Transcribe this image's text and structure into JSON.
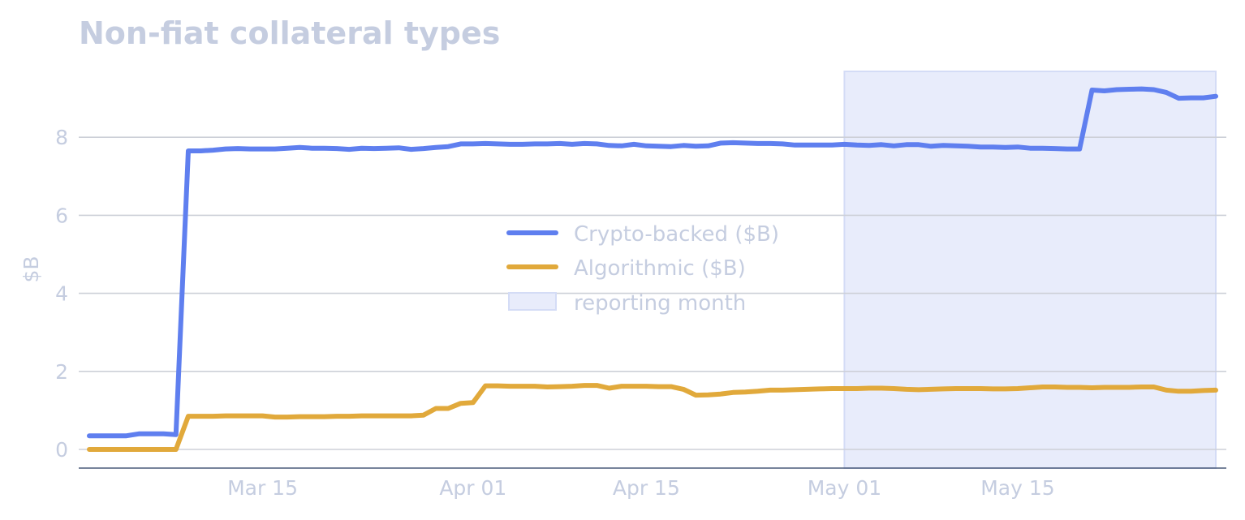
{
  "chart_data": {
    "type": "line",
    "title": "Non-fiat collateral types",
    "xlabel": "",
    "ylabel": "$B",
    "x_ticks": [
      "Mar 15",
      "Apr 01",
      "Apr 15",
      "May 01",
      "May 15"
    ],
    "y_ticks": [
      "0",
      "2",
      "4",
      "6",
      "8"
    ],
    "ylim": [
      -0.45,
      9.7
    ],
    "x_start": "2024-03-01",
    "x_end": "2024-05-31",
    "grid": "horizontal",
    "legend_placement": "center",
    "highlight": {
      "label": "reporting month",
      "start": "2024-05-01",
      "end": "2024-05-31",
      "color": "#e8ecfb"
    },
    "series": [
      {
        "name": "Crypto-backed ($B)",
        "color": "#5f7fef",
        "points": [
          [
            "2024-03-01",
            0.35
          ],
          [
            "2024-03-02",
            0.35
          ],
          [
            "2024-03-03",
            0.35
          ],
          [
            "2024-03-04",
            0.35
          ],
          [
            "2024-03-05",
            0.4
          ],
          [
            "2024-03-06",
            0.4
          ],
          [
            "2024-03-07",
            0.4
          ],
          [
            "2024-03-08",
            0.38
          ],
          [
            "2024-03-09",
            7.65
          ],
          [
            "2024-03-10",
            7.65
          ],
          [
            "2024-03-11",
            7.67
          ],
          [
            "2024-03-12",
            7.7
          ],
          [
            "2024-03-13",
            7.71
          ],
          [
            "2024-03-14",
            7.7
          ],
          [
            "2024-03-15",
            7.7
          ],
          [
            "2024-03-16",
            7.7
          ],
          [
            "2024-03-17",
            7.72
          ],
          [
            "2024-03-18",
            7.74
          ],
          [
            "2024-03-19",
            7.72
          ],
          [
            "2024-03-20",
            7.72
          ],
          [
            "2024-03-21",
            7.71
          ],
          [
            "2024-03-22",
            7.69
          ],
          [
            "2024-03-23",
            7.72
          ],
          [
            "2024-03-24",
            7.71
          ],
          [
            "2024-03-25",
            7.72
          ],
          [
            "2024-03-26",
            7.73
          ],
          [
            "2024-03-27",
            7.69
          ],
          [
            "2024-03-28",
            7.71
          ],
          [
            "2024-03-29",
            7.74
          ],
          [
            "2024-03-30",
            7.76
          ],
          [
            "2024-03-31",
            7.83
          ],
          [
            "2024-04-01",
            7.83
          ],
          [
            "2024-04-02",
            7.84
          ],
          [
            "2024-04-03",
            7.83
          ],
          [
            "2024-04-04",
            7.82
          ],
          [
            "2024-04-05",
            7.82
          ],
          [
            "2024-04-06",
            7.83
          ],
          [
            "2024-04-07",
            7.83
          ],
          [
            "2024-04-08",
            7.84
          ],
          [
            "2024-04-09",
            7.82
          ],
          [
            "2024-04-10",
            7.84
          ],
          [
            "2024-04-11",
            7.83
          ],
          [
            "2024-04-12",
            7.79
          ],
          [
            "2024-04-13",
            7.78
          ],
          [
            "2024-04-14",
            7.82
          ],
          [
            "2024-04-15",
            7.78
          ],
          [
            "2024-04-16",
            7.77
          ],
          [
            "2024-04-17",
            7.76
          ],
          [
            "2024-04-18",
            7.79
          ],
          [
            "2024-04-19",
            7.77
          ],
          [
            "2024-04-20",
            7.78
          ],
          [
            "2024-04-21",
            7.85
          ],
          [
            "2024-04-22",
            7.86
          ],
          [
            "2024-04-23",
            7.85
          ],
          [
            "2024-04-24",
            7.84
          ],
          [
            "2024-04-25",
            7.84
          ],
          [
            "2024-04-26",
            7.83
          ],
          [
            "2024-04-27",
            7.8
          ],
          [
            "2024-04-28",
            7.8
          ],
          [
            "2024-04-29",
            7.8
          ],
          [
            "2024-04-30",
            7.8
          ],
          [
            "2024-05-01",
            7.82
          ],
          [
            "2024-05-02",
            7.8
          ],
          [
            "2024-05-03",
            7.79
          ],
          [
            "2024-05-04",
            7.81
          ],
          [
            "2024-05-05",
            7.78
          ],
          [
            "2024-05-06",
            7.81
          ],
          [
            "2024-05-07",
            7.81
          ],
          [
            "2024-05-08",
            7.77
          ],
          [
            "2024-05-09",
            7.79
          ],
          [
            "2024-05-10",
            7.78
          ],
          [
            "2024-05-11",
            7.77
          ],
          [
            "2024-05-12",
            7.75
          ],
          [
            "2024-05-13",
            7.75
          ],
          [
            "2024-05-14",
            7.74
          ],
          [
            "2024-05-15",
            7.75
          ],
          [
            "2024-05-16",
            7.72
          ],
          [
            "2024-05-17",
            7.72
          ],
          [
            "2024-05-18",
            7.71
          ],
          [
            "2024-05-19",
            7.7
          ],
          [
            "2024-05-20",
            7.7
          ],
          [
            "2024-05-21",
            9.21
          ],
          [
            "2024-05-22",
            9.19
          ],
          [
            "2024-05-23",
            9.22
          ],
          [
            "2024-05-24",
            9.23
          ],
          [
            "2024-05-25",
            9.24
          ],
          [
            "2024-05-26",
            9.22
          ],
          [
            "2024-05-27",
            9.15
          ],
          [
            "2024-05-28",
            9.0
          ],
          [
            "2024-05-29",
            9.01
          ],
          [
            "2024-05-30",
            9.01
          ],
          [
            "2024-05-31",
            9.05
          ]
        ]
      },
      {
        "name": "Algorithmic ($B)",
        "color": "#e1a93b",
        "points": [
          [
            "2024-03-01",
            0.0
          ],
          [
            "2024-03-02",
            0.0
          ],
          [
            "2024-03-03",
            0.0
          ],
          [
            "2024-03-04",
            0.0
          ],
          [
            "2024-03-05",
            0.0
          ],
          [
            "2024-03-06",
            0.0
          ],
          [
            "2024-03-07",
            0.0
          ],
          [
            "2024-03-08",
            0.0
          ],
          [
            "2024-03-09",
            0.85
          ],
          [
            "2024-03-10",
            0.85
          ],
          [
            "2024-03-11",
            0.85
          ],
          [
            "2024-03-12",
            0.86
          ],
          [
            "2024-03-13",
            0.86
          ],
          [
            "2024-03-14",
            0.86
          ],
          [
            "2024-03-15",
            0.86
          ],
          [
            "2024-03-16",
            0.83
          ],
          [
            "2024-03-17",
            0.83
          ],
          [
            "2024-03-18",
            0.84
          ],
          [
            "2024-03-19",
            0.84
          ],
          [
            "2024-03-20",
            0.84
          ],
          [
            "2024-03-21",
            0.85
          ],
          [
            "2024-03-22",
            0.85
          ],
          [
            "2024-03-23",
            0.86
          ],
          [
            "2024-03-24",
            0.86
          ],
          [
            "2024-03-25",
            0.86
          ],
          [
            "2024-03-26",
            0.86
          ],
          [
            "2024-03-27",
            0.86
          ],
          [
            "2024-03-28",
            0.88
          ],
          [
            "2024-03-29",
            1.05
          ],
          [
            "2024-03-30",
            1.05
          ],
          [
            "2024-03-31",
            1.18
          ],
          [
            "2024-04-01",
            1.2
          ],
          [
            "2024-04-02",
            1.63
          ],
          [
            "2024-04-03",
            1.63
          ],
          [
            "2024-04-04",
            1.62
          ],
          [
            "2024-04-05",
            1.62
          ],
          [
            "2024-04-06",
            1.62
          ],
          [
            "2024-04-07",
            1.6
          ],
          [
            "2024-04-08",
            1.61
          ],
          [
            "2024-04-09",
            1.62
          ],
          [
            "2024-04-10",
            1.64
          ],
          [
            "2024-04-11",
            1.64
          ],
          [
            "2024-04-12",
            1.57
          ],
          [
            "2024-04-13",
            1.62
          ],
          [
            "2024-04-14",
            1.62
          ],
          [
            "2024-04-15",
            1.62
          ],
          [
            "2024-04-16",
            1.61
          ],
          [
            "2024-04-17",
            1.61
          ],
          [
            "2024-04-18",
            1.54
          ],
          [
            "2024-04-19",
            1.39
          ],
          [
            "2024-04-20",
            1.4
          ],
          [
            "2024-04-21",
            1.42
          ],
          [
            "2024-04-22",
            1.46
          ],
          [
            "2024-04-23",
            1.47
          ],
          [
            "2024-04-24",
            1.49
          ],
          [
            "2024-04-25",
            1.52
          ],
          [
            "2024-04-26",
            1.52
          ],
          [
            "2024-04-27",
            1.53
          ],
          [
            "2024-04-28",
            1.54
          ],
          [
            "2024-04-29",
            1.55
          ],
          [
            "2024-04-30",
            1.56
          ],
          [
            "2024-05-01",
            1.56
          ],
          [
            "2024-05-02",
            1.56
          ],
          [
            "2024-05-03",
            1.57
          ],
          [
            "2024-05-04",
            1.57
          ],
          [
            "2024-05-05",
            1.56
          ],
          [
            "2024-05-06",
            1.54
          ],
          [
            "2024-05-07",
            1.53
          ],
          [
            "2024-05-08",
            1.54
          ],
          [
            "2024-05-09",
            1.55
          ],
          [
            "2024-05-10",
            1.56
          ],
          [
            "2024-05-11",
            1.56
          ],
          [
            "2024-05-12",
            1.56
          ],
          [
            "2024-05-13",
            1.55
          ],
          [
            "2024-05-14",
            1.55
          ],
          [
            "2024-05-15",
            1.56
          ],
          [
            "2024-05-16",
            1.58
          ],
          [
            "2024-05-17",
            1.6
          ],
          [
            "2024-05-18",
            1.6
          ],
          [
            "2024-05-19",
            1.59
          ],
          [
            "2024-05-20",
            1.59
          ],
          [
            "2024-05-21",
            1.58
          ],
          [
            "2024-05-22",
            1.59
          ],
          [
            "2024-05-23",
            1.59
          ],
          [
            "2024-05-24",
            1.59
          ],
          [
            "2024-05-25",
            1.6
          ],
          [
            "2024-05-26",
            1.6
          ],
          [
            "2024-05-27",
            1.52
          ],
          [
            "2024-05-28",
            1.49
          ],
          [
            "2024-05-29",
            1.49
          ],
          [
            "2024-05-30",
            1.51
          ],
          [
            "2024-05-31",
            1.52
          ]
        ]
      }
    ]
  },
  "colors": {
    "grid": "#cdd0d8",
    "axis": "#4a5a78",
    "text": "#c5cde0",
    "highlight_edge": "#d4dcf6"
  }
}
